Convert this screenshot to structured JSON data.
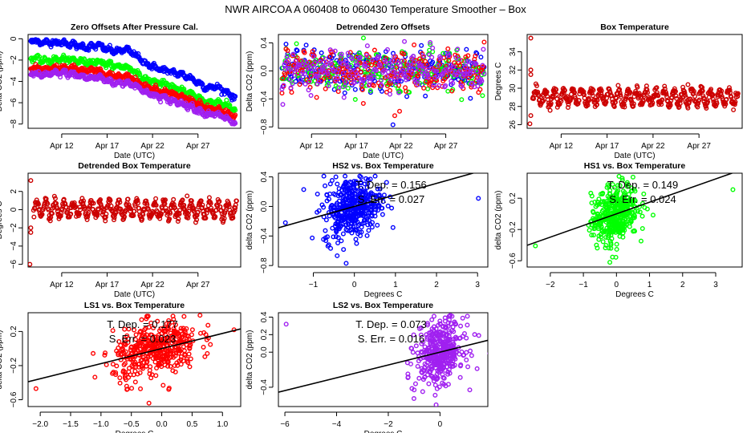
{
  "page": {
    "title": "NWR   AIRCOA A   060408 to 060430   Temperature Smoother – Box"
  },
  "colors": {
    "HS2": "#0000ff",
    "HS1": "#00ff00",
    "LS1": "#ff0000",
    "LS2": "#a020f0",
    "box_temp": "#cc0000",
    "fit_line": "#000000"
  },
  "chart_data": [
    {
      "id": "zero-offsets",
      "type": "scatter",
      "title": "Zero Offsets After Pressure Cal.",
      "xlabel": "Date (UTC)",
      "ylabel": "Delta CO2 (ppm)",
      "xlim": [
        8.3,
        31.7
      ],
      "ylim": [
        -8.4,
        0.4
      ],
      "xticks": [
        {
          "v": 12,
          "label": "Apr 12"
        },
        {
          "v": 17,
          "label": "Apr 17"
        },
        {
          "v": 22,
          "label": "Apr 22"
        },
        {
          "v": 27,
          "label": "Apr 27"
        }
      ],
      "yticks": [
        {
          "v": 0,
          "label": "0"
        },
        {
          "v": -2,
          "label": "-2"
        },
        {
          "v": -4,
          "label": "-4"
        },
        {
          "v": -6,
          "label": "-6"
        },
        {
          "v": -8,
          "label": "-8"
        }
      ],
      "series": [
        {
          "name": "HS2",
          "color": "#0000ff",
          "x": [
            8.6,
            10,
            11,
            12,
            13,
            14,
            15,
            16,
            17,
            18,
            19,
            20,
            21,
            22,
            23,
            24,
            25,
            26,
            27,
            28,
            29,
            30,
            31
          ],
          "y": [
            -0.1,
            -0.4,
            -0.3,
            -0.4,
            -0.5,
            -0.7,
            -0.8,
            -0.6,
            -1.0,
            -1.2,
            -1.0,
            -1.4,
            -2.2,
            -2.6,
            -2.9,
            -3.1,
            -3.3,
            -3.6,
            -4.1,
            -4.6,
            -4.5,
            -4.9,
            -5.5
          ]
        },
        {
          "name": "HS1",
          "color": "#00ff00",
          "x": [
            8.6,
            10,
            11,
            12,
            13,
            14,
            15,
            16,
            17,
            18,
            19,
            20,
            21,
            22,
            23,
            24,
            25,
            26,
            27,
            28,
            29,
            30,
            31
          ],
          "y": [
            -1.7,
            -2.1,
            -2.0,
            -1.9,
            -2.0,
            -2.1,
            -2.2,
            -2.1,
            -2.4,
            -2.6,
            -2.6,
            -3.0,
            -3.8,
            -4.0,
            -4.2,
            -4.5,
            -4.8,
            -5.1,
            -5.5,
            -6.0,
            -5.9,
            -6.2,
            -6.6
          ]
        },
        {
          "name": "LS1",
          "color": "#ff0000",
          "x": [
            8.6,
            10,
            11,
            12,
            13,
            14,
            15,
            16,
            17,
            18,
            19,
            20,
            21,
            22,
            23,
            24,
            25,
            26,
            27,
            28,
            29,
            30,
            31
          ],
          "y": [
            -2.7,
            -2.9,
            -2.8,
            -2.7,
            -2.8,
            -2.9,
            -3.0,
            -3.0,
            -3.4,
            -3.5,
            -3.5,
            -3.8,
            -4.4,
            -4.7,
            -4.9,
            -5.1,
            -5.4,
            -5.7,
            -6.1,
            -6.6,
            -6.6,
            -6.9,
            -7.3
          ]
        },
        {
          "name": "LS2",
          "color": "#a020f0",
          "x": [
            8.6,
            10,
            11,
            12,
            13,
            14,
            15,
            16,
            17,
            18,
            19,
            20,
            21,
            22,
            23,
            24,
            25,
            26,
            27,
            28,
            29,
            30,
            31
          ],
          "y": [
            -3.3,
            -3.4,
            -3.3,
            -3.2,
            -3.3,
            -3.5,
            -3.7,
            -3.6,
            -3.9,
            -4.2,
            -4.1,
            -4.3,
            -4.9,
            -5.3,
            -5.5,
            -5.8,
            -6.0,
            -6.3,
            -6.7,
            -7.1,
            -7.1,
            -7.4,
            -7.9
          ]
        }
      ]
    },
    {
      "id": "detrended-zero-offsets",
      "type": "scatter",
      "title": "Detrended Zero Offsets",
      "xlabel": "Date (UTC)",
      "ylabel": "Delta CO2 (ppm)",
      "xlim": [
        8.3,
        31.7
      ],
      "ylim": [
        -0.82,
        0.52
      ],
      "xticks": [
        {
          "v": 12,
          "label": "Apr 12"
        },
        {
          "v": 17,
          "label": "Apr 17"
        },
        {
          "v": 22,
          "label": "Apr 22"
        },
        {
          "v": 27,
          "label": "Apr 27"
        }
      ],
      "yticks": [
        {
          "v": 0.4,
          "label": "0.4"
        },
        {
          "v": 0.0,
          "label": "0.0"
        },
        {
          "v": -0.4,
          "label": "-0.4"
        },
        {
          "v": -0.8,
          "label": "-0.8"
        }
      ],
      "series_names": [
        "HS2",
        "HS1",
        "LS1",
        "LS2"
      ],
      "spread_ppm": 0.3,
      "extremes": [
        {
          "x": 17.8,
          "y": 0.47,
          "series": "HS1"
        },
        {
          "x": 21.1,
          "y": -0.77,
          "series": "HS2"
        },
        {
          "x": 21.3,
          "y": -0.64,
          "series": "LS1"
        }
      ]
    },
    {
      "id": "box-temperature",
      "type": "scatter",
      "title": "Box Temperature",
      "xlabel": "Date (UTC)",
      "ylabel": "Degrees C",
      "xlim": [
        8.3,
        31.7
      ],
      "ylim": [
        25.6,
        35.9
      ],
      "xticks": [
        {
          "v": 12,
          "label": "Apr 12"
        },
        {
          "v": 17,
          "label": "Apr 17"
        },
        {
          "v": 22,
          "label": "Apr 22"
        },
        {
          "v": 27,
          "label": "Apr 27"
        }
      ],
      "yticks": [
        {
          "v": 26,
          "label": "26"
        },
        {
          "v": 28,
          "label": "28"
        },
        {
          "v": 30,
          "label": "30"
        },
        {
          "v": 32,
          "label": "32"
        },
        {
          "v": 34,
          "label": "34"
        }
      ],
      "mean": 29.0,
      "diurnal_amplitude": 0.8,
      "outliers": [
        {
          "x": 8.7,
          "y": 35.5
        },
        {
          "x": 8.7,
          "y": 32.0
        },
        {
          "x": 8.7,
          "y": 31.5
        },
        {
          "x": 8.7,
          "y": 27.0
        },
        {
          "x": 8.6,
          "y": 26.1
        },
        {
          "x": 25.8,
          "y": 30.4
        }
      ]
    },
    {
      "id": "detrended-box-temperature",
      "type": "scatter",
      "title": "Detrended Box Temperature",
      "xlabel": "Date (UTC)",
      "ylabel": "Degrees C",
      "xlim": [
        8.3,
        31.7
      ],
      "ylim": [
        -6.3,
        4.0
      ],
      "xticks": [
        {
          "v": 12,
          "label": "Apr 12"
        },
        {
          "v": 17,
          "label": "Apr 17"
        },
        {
          "v": 22,
          "label": "Apr 22"
        },
        {
          "v": 27,
          "label": "Apr 27"
        }
      ],
      "yticks": [
        {
          "v": 2,
          "label": "2"
        },
        {
          "v": 0,
          "label": "0"
        },
        {
          "v": -2,
          "label": "-2"
        },
        {
          "v": -4,
          "label": "-4"
        },
        {
          "v": -6,
          "label": "-6"
        }
      ],
      "mean": 0.0,
      "diurnal_amplitude": 0.8,
      "outliers": [
        {
          "x": 8.6,
          "y": 3.2
        },
        {
          "x": 8.6,
          "y": -2.0
        },
        {
          "x": 8.6,
          "y": -2.5
        },
        {
          "x": 8.5,
          "y": -6.0
        },
        {
          "x": 25.8,
          "y": 1.5
        }
      ]
    },
    {
      "id": "hs2-vs-box",
      "type": "scatter",
      "title": "HS2 vs. Box Temperature",
      "xlabel": "Degrees C",
      "ylabel": "delta CO2 (ppm)",
      "series": "HS2",
      "color": "#0000ff",
      "xlim": [
        -1.85,
        3.25
      ],
      "ylim": [
        -0.82,
        0.45
      ],
      "xticks": [
        {
          "v": -1,
          "label": "-1"
        },
        {
          "v": 0,
          "label": "0"
        },
        {
          "v": 1,
          "label": "1"
        },
        {
          "v": 2,
          "label": "2"
        },
        {
          "v": 3,
          "label": "3"
        }
      ],
      "yticks": [
        {
          "v": 0.4,
          "label": "0.4"
        },
        {
          "v": 0.0,
          "label": "0.0"
        },
        {
          "v": -0.4,
          "label": "-0.4"
        },
        {
          "v": -0.8,
          "label": "-0.8"
        }
      ],
      "slope": 0.156,
      "intercept": 0.0,
      "annotation": {
        "line1": "T. Dep. =  0.156",
        "line2": "S. Err. =  0.027"
      },
      "cloud": {
        "x_mean": -0.05,
        "x_sd": 0.35,
        "y_sd": 0.2
      },
      "outliers": [
        {
          "x": -1.68,
          "y": -0.22
        },
        {
          "x": 3.02,
          "y": 0.11
        },
        {
          "x": -0.2,
          "y": -0.77
        },
        {
          "x": -0.45,
          "y": 0.4
        }
      ]
    },
    {
      "id": "hs1-vs-box",
      "type": "scatter",
      "title": "HS1 vs. Box Temperature",
      "xlabel": "Degrees C",
      "ylabel": "delta CO2 (ppm)",
      "series": "HS1",
      "color": "#00ff00",
      "xlim": [
        -2.7,
        3.8
      ],
      "ylim": [
        -0.68,
        0.52
      ],
      "xticks": [
        {
          "v": -2,
          "label": "-2"
        },
        {
          "v": -1,
          "label": "-1"
        },
        {
          "v": 0,
          "label": "0"
        },
        {
          "v": 1,
          "label": "1"
        },
        {
          "v": 2,
          "label": "2"
        },
        {
          "v": 3,
          "label": "3"
        }
      ],
      "yticks": [
        {
          "v": 0.2,
          "label": "0.2"
        },
        {
          "v": -0.2,
          "label": "-0.2"
        },
        {
          "v": -0.6,
          "label": "-0.6"
        }
      ],
      "slope": 0.149,
      "intercept": 0.0,
      "annotation": {
        "line1": "T. Dep. =  0.149",
        "line2": "S. Err. =  0.024"
      },
      "cloud": {
        "x_mean": -0.05,
        "x_sd": 0.35,
        "y_sd": 0.18
      },
      "outliers": [
        {
          "x": -2.45,
          "y": -0.41
        },
        {
          "x": 3.52,
          "y": 0.31
        },
        {
          "x": -0.2,
          "y": -0.62
        },
        {
          "x": 0.5,
          "y": 0.47
        }
      ]
    },
    {
      "id": "ls1-vs-box",
      "type": "scatter",
      "title": "LS1 vs. Box Temperature",
      "xlabel": "Degrees C",
      "ylabel": "delta CO2 (ppm)",
      "series": "LS1",
      "color": "#ff0000",
      "xlim": [
        -2.2,
        1.3
      ],
      "ylim": [
        -0.68,
        0.42
      ],
      "xticks": [
        {
          "v": -2.0,
          "label": "-2.0"
        },
        {
          "v": -1.5,
          "label": "-1.5"
        },
        {
          "v": -1.0,
          "label": "-1.0"
        },
        {
          "v": -0.5,
          "label": "-0.5"
        },
        {
          "v": 0.0,
          "label": "0.0"
        },
        {
          "v": 0.5,
          "label": "0.5"
        },
        {
          "v": 1.0,
          "label": "1.0"
        }
      ],
      "yticks": [
        {
          "v": 0.2,
          "label": "0.2"
        },
        {
          "v": -0.2,
          "label": "-0.2"
        },
        {
          "v": -0.6,
          "label": "-0.6"
        }
      ],
      "slope": 0.177,
      "intercept": 0.0,
      "annotation": {
        "line1": "T. Dep. =  0.177",
        "line2": "S. Err. =  0.023"
      },
      "cloud": {
        "x_mean": -0.1,
        "x_sd": 0.35,
        "y_sd": 0.16
      },
      "outliers": [
        {
          "x": -2.07,
          "y": -0.47
        },
        {
          "x": -0.91,
          "y": -0.19
        },
        {
          "x": -0.21,
          "y": -0.64
        },
        {
          "x": 1.19,
          "y": 0.22
        },
        {
          "x": 0.63,
          "y": 0.39
        }
      ]
    },
    {
      "id": "ls2-vs-box",
      "type": "scatter",
      "title": "LS2 vs. Box Temperature",
      "xlabel": "Degrees C",
      "ylabel": "delta CO2 (ppm)",
      "series": "LS2",
      "color": "#a020f0",
      "xlim": [
        -6.25,
        1.85
      ],
      "ylim": [
        -0.62,
        0.45
      ],
      "xticks": [
        {
          "v": -6,
          "label": "-6"
        },
        {
          "v": -4,
          "label": "-4"
        },
        {
          "v": -2,
          "label": "-2"
        },
        {
          "v": 0,
          "label": "0"
        }
      ],
      "yticks": [
        {
          "v": 0.4,
          "label": "0.4"
        },
        {
          "v": 0.2,
          "label": "0.2"
        },
        {
          "v": 0.0,
          "label": "0.0"
        },
        {
          "v": -0.4,
          "label": "-0.4"
        }
      ],
      "slope": 0.073,
      "intercept": 0.0,
      "annotation": {
        "line1": "T. Dep. =  0.073",
        "line2": "S. Err. =  0.016"
      },
      "cloud": {
        "x_mean": 0.0,
        "x_sd": 0.45,
        "y_sd": 0.17
      },
      "outliers": [
        {
          "x": -5.95,
          "y": 0.32
        },
        {
          "x": -1.0,
          "y": -0.43
        },
        {
          "x": -0.15,
          "y": -0.6
        },
        {
          "x": 1.5,
          "y": 0.19
        },
        {
          "x": 0.4,
          "y": 0.42
        }
      ]
    }
  ]
}
